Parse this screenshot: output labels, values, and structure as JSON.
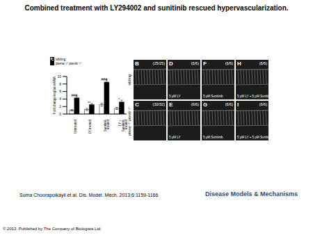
{
  "title": "Combined treatment with LY294002 and sunitinib rescued hypervascularization.",
  "chart_data": {
    "type": "bar",
    "panel": "A",
    "categories": [
      "Untreated",
      "LY treated",
      "Sunitinib treated",
      "LY + Sunitinib treated"
    ],
    "series": [
      {
        "name": "sibling",
        "color": "#ffffff",
        "values": [
          1.0,
          1.2,
          2.5,
          1.5
        ],
        "errors": [
          0.2,
          0.3,
          0.4,
          0.3
        ]
      },
      {
        "name": "ptena⁻/⁻ptenb⁻/⁻",
        "color": "#000000",
        "values": [
          4.3,
          2.5,
          8.5,
          3.2
        ],
        "errors": [
          0.5,
          0.3,
          0.6,
          0.5
        ]
      }
    ],
    "ylabel": "Fold change/vegfaa mRNA",
    "ylim": [
      0,
      10
    ],
    "yticks": [
      0,
      2,
      4,
      6,
      8,
      10
    ],
    "legend": "top",
    "annotations": [
      {
        "text": "###",
        "x": "Untreated",
        "y": 5.0
      },
      {
        "text": "**",
        "x": "LY treated",
        "y": 3.0
      },
      {
        "text": "###",
        "x": "Sunitinib treated",
        "y": 9.2
      },
      {
        "text": "*",
        "x": "LY + Sunitinib treated",
        "y": 3.9
      }
    ]
  },
  "row_labels": [
    "sibling",
    "ptena⁻/⁻ptenb⁻/⁻"
  ],
  "image_panels": [
    [
      {
        "label": "B",
        "count": "(25/25)"
      },
      {
        "label": "C",
        "count": "(32/32)"
      }
    ],
    [
      {
        "label": "D",
        "count": "(6/6)",
        "caption": "5 µM LY"
      },
      {
        "label": "E",
        "count": "(6/6)",
        "caption": "5 µM LY"
      }
    ],
    [
      {
        "label": "F",
        "count": "(6/6)",
        "caption": "5 µM Sunitinib"
      },
      {
        "label": "G",
        "count": "(6/6)",
        "caption": "5 µM Sunitinib"
      }
    ],
    [
      {
        "label": "H",
        "count": "(6/6)",
        "caption": "5 µM LY + 5 µM Sunitinib"
      },
      {
        "label": "I",
        "count": "(6/6)",
        "caption": "5 µM LY + 5 µM Sunitinib"
      }
    ]
  ],
  "footer": {
    "citation": "Suma Choorapoikayil et al. Dis. Model. Mech. 2013;6:1159-1166",
    "journal": "Disease Models & Mechanisms",
    "copyright": "© 2013. Published by The Company of Biologists Ltd"
  }
}
